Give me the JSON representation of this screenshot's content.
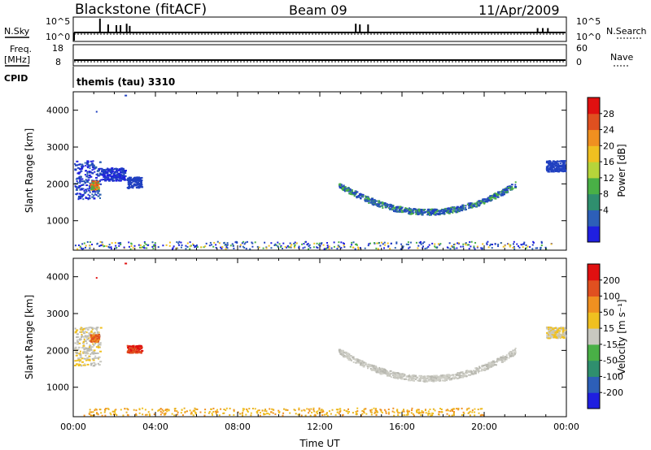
{
  "header": {
    "title": "Blackstone (fitACF)",
    "beam": "Beam 09",
    "date": "11/Apr/2009"
  },
  "status_panels": {
    "nsky_label": "N.Sky",
    "nsearch_label": "N.Search",
    "freq_label_1": "Freq.",
    "freq_label_2": "[MHz]",
    "nave_label": "Nave",
    "cpid_label": "CPID",
    "nsky_ticks": [
      "10^5",
      "10^0"
    ],
    "nsearch_ticks": [
      "10^5",
      "10^0"
    ],
    "freq_ticks": [
      "18",
      "8"
    ],
    "nave_ticks": [
      "60",
      "0"
    ],
    "cpid_text": "themis (tau) 3310",
    "nsky_spikes": [
      {
        "t": 1.3,
        "v": 0.95
      },
      {
        "t": 1.7,
        "v": 0.55
      },
      {
        "t": 2.1,
        "v": 0.5
      },
      {
        "t": 2.3,
        "v": 0.5
      },
      {
        "t": 2.6,
        "v": 0.6
      },
      {
        "t": 2.75,
        "v": 0.45
      },
      {
        "t": 13.75,
        "v": 0.6
      },
      {
        "t": 13.95,
        "v": 0.55
      },
      {
        "t": 14.35,
        "v": 0.55
      },
      {
        "t": 22.6,
        "v": 0.3
      },
      {
        "t": 22.85,
        "v": 0.3
      },
      {
        "t": 23.1,
        "v": 0.3
      }
    ]
  },
  "chart_data": [
    {
      "type": "scatter",
      "name": "power",
      "xlabel": "",
      "ylabel": "Slant Range [km]",
      "xlim": [
        0,
        24
      ],
      "ylim": [
        200,
        4500
      ],
      "yticks": [
        "4000",
        "3000",
        "2000",
        "1000"
      ],
      "colorbar": {
        "label": "Power [dB]",
        "ticks": [
          "28",
          "24",
          "20",
          "16",
          "12",
          "8",
          "4"
        ],
        "colors": [
          "#1f1fe0",
          "#2d5fb8",
          "#2f8f6e",
          "#49b046",
          "#b6d53a",
          "#f0c020",
          "#f09020",
          "#e05020",
          "#e01010"
        ]
      },
      "clusters": [
        {
          "t0": 0.0,
          "t1": 1.3,
          "r0": 1600,
          "r1": 2650,
          "c": [
            "#2040c0",
            "#2a60b0",
            "#1f1fe0"
          ]
        },
        {
          "t0": 0.8,
          "t1": 1.2,
          "r0": 1850,
          "r1": 2100,
          "c": [
            "#f09020",
            "#49b046",
            "#e05020"
          ]
        },
        {
          "t0": 1.3,
          "t1": 2.5,
          "r0": 2100,
          "r1": 2450,
          "c": [
            "#2040c0",
            "#1f1fe0"
          ]
        },
        {
          "t0": 2.6,
          "t1": 3.3,
          "r0": 1900,
          "r1": 2200,
          "c": [
            "#2040c0"
          ]
        },
        {
          "t0": 12.9,
          "t1": 21.5,
          "arc": true,
          "rmin": 1250,
          "rmax": 2000,
          "c": [
            "#2040c0",
            "#2a60b0",
            "#49b046"
          ]
        },
        {
          "t0": 23.0,
          "t1": 23.9,
          "r0": 2350,
          "r1": 2650,
          "c": [
            "#2040c0"
          ]
        }
      ],
      "ground": {
        "t0": 0.0,
        "t1": 23.5,
        "r0": 250,
        "r1": 450,
        "c": [
          "#2040c0",
          "#1f1fe0",
          "#f0c020",
          "#49b046",
          "#2a60b0"
        ]
      }
    },
    {
      "type": "scatter",
      "name": "velocity",
      "xlabel": "Time UT",
      "ylabel": "Slant Range [km]",
      "xlim": [
        0,
        24
      ],
      "ylim": [
        200,
        4500
      ],
      "xticks": [
        "00:00",
        "04:00",
        "08:00",
        "12:00",
        "16:00",
        "20:00",
        "00:00"
      ],
      "yticks": [
        "4000",
        "3000",
        "2000",
        "1000"
      ],
      "colorbar": {
        "label": "Velocity [m s⁻¹]",
        "ticks": [
          "200",
          "100",
          "50",
          "15",
          "-15",
          "-50",
          "-100",
          "-200"
        ],
        "colors": [
          "#1f1fe0",
          "#2d5fb8",
          "#2f8f6e",
          "#49b046",
          "#c8c8c0",
          "#f0c020",
          "#f09020",
          "#e05020",
          "#e01010"
        ]
      },
      "clusters": [
        {
          "t0": 0.0,
          "t1": 1.3,
          "r0": 1600,
          "r1": 2650,
          "c": [
            "#c8c8c0",
            "#b8b8b0",
            "#f0c020"
          ]
        },
        {
          "t0": 0.8,
          "t1": 1.2,
          "r0": 2250,
          "r1": 2450,
          "c": [
            "#e05020",
            "#f09020"
          ]
        },
        {
          "t0": 2.6,
          "t1": 3.3,
          "r0": 1950,
          "r1": 2150,
          "c": [
            "#e01010",
            "#e05020"
          ]
        },
        {
          "t0": 12.9,
          "t1": 21.5,
          "arc": true,
          "rmin": 1250,
          "rmax": 2000,
          "c": [
            "#c8c8c0",
            "#b8b8b0",
            "#d0d0c8"
          ]
        },
        {
          "t0": 23.0,
          "t1": 23.9,
          "r0": 2350,
          "r1": 2650,
          "c": [
            "#c8c8c0",
            "#f0c020"
          ]
        }
      ],
      "ground": {
        "t0": 0.5,
        "t1": 20.0,
        "r0": 250,
        "r1": 450,
        "c": [
          "#f0c020",
          "#f09020",
          "#e8b020"
        ]
      }
    }
  ]
}
